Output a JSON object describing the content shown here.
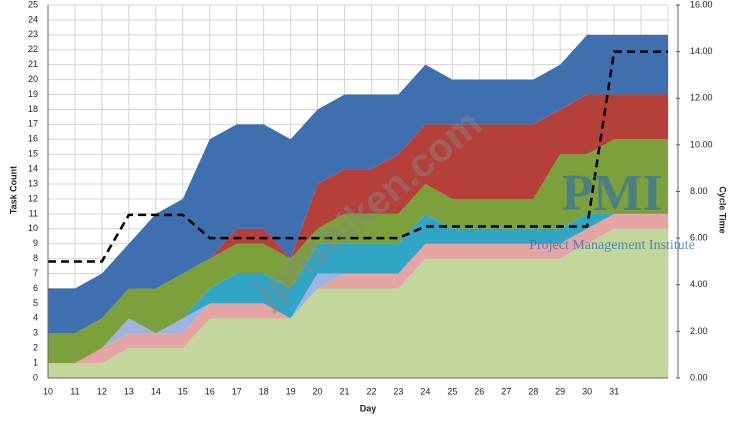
{
  "chart_data": {
    "type": "stacked-area",
    "y_label": "Task Count",
    "x_label": "Day",
    "y2_label": "Cycle Time",
    "categories": [
      "10",
      "11",
      "12",
      "13",
      "14",
      "15",
      "16",
      "17",
      "18",
      "19",
      "20",
      "21",
      "22",
      "23",
      "24",
      "25",
      "26",
      "27",
      "28",
      "29",
      "30",
      "31",
      null,
      null
    ],
    "ylim": [
      0,
      25
    ],
    "yticks": [
      0,
      1,
      2,
      3,
      4,
      5,
      6,
      7,
      8,
      9,
      10,
      11,
      12,
      13,
      14,
      15,
      16,
      17,
      18,
      19,
      20,
      21,
      22,
      23,
      24,
      25
    ],
    "y2lim": [
      0,
      16
    ],
    "y2ticks": [
      {
        "value": 0,
        "label": "0.00"
      },
      {
        "value": 2,
        "label": "2.00"
      },
      {
        "value": 4,
        "label": "4.00"
      },
      {
        "value": 6,
        "label": "6.00"
      },
      {
        "value": 8,
        "label": "8.00"
      },
      {
        "value": 10,
        "label": "10.00"
      },
      {
        "value": 12,
        "label": "12.00"
      },
      {
        "value": 14,
        "label": "14.00"
      },
      {
        "value": 16,
        "label": "16.00"
      }
    ],
    "grid": true,
    "series": [
      {
        "color": "#c3d69b",
        "values": [
          1,
          1,
          1,
          2,
          2,
          2,
          4,
          4,
          4,
          4,
          6,
          6,
          6,
          6,
          8,
          8,
          8,
          8,
          8,
          8,
          9,
          10,
          10,
          10
        ]
      },
      {
        "color": "#e6a5a5",
        "values": [
          0,
          0,
          1,
          1,
          1,
          1,
          1,
          1,
          1,
          0,
          0,
          1,
          1,
          1,
          1,
          1,
          1,
          1,
          1,
          1,
          1,
          1,
          1,
          1
        ]
      },
      {
        "color": "#9fb4e0",
        "values": [
          0,
          0,
          0,
          1,
          0,
          1,
          0,
          0,
          0,
          0,
          1,
          0,
          0,
          0,
          0,
          0,
          0,
          0,
          0,
          0,
          0,
          0,
          0,
          0
        ]
      },
      {
        "color": "#31a5c4",
        "values": [
          0,
          0,
          0,
          0,
          0,
          0,
          1,
          2,
          2,
          2,
          2,
          2,
          2,
          2,
          2,
          1,
          1,
          1,
          1,
          1,
          1,
          0,
          0,
          0
        ]
      },
      {
        "color": "#7ba03c",
        "values": [
          2,
          2,
          2,
          2,
          3,
          3,
          2,
          2,
          2,
          2,
          1,
          2,
          2,
          2,
          2,
          2,
          2,
          2,
          2,
          5,
          4,
          5,
          5,
          5
        ]
      },
      {
        "color": "#b5403a",
        "values": [
          0,
          0,
          0,
          0,
          0,
          0,
          0,
          1,
          1,
          0,
          3,
          3,
          3,
          4,
          4,
          5,
          5,
          5,
          5,
          3,
          4,
          3,
          3,
          3
        ]
      },
      {
        "color": "#3f6faf",
        "values": [
          3,
          3,
          3,
          3,
          5,
          5,
          8,
          7,
          7,
          8,
          5,
          5,
          5,
          4,
          4,
          3,
          3,
          3,
          3,
          3,
          4,
          4,
          4,
          4
        ]
      },
      {
        "type": "line",
        "axis": "y2",
        "color": "#000000",
        "dashed": true,
        "values": [
          5,
          5,
          5,
          7,
          7,
          7,
          6,
          6,
          6,
          6,
          6,
          6,
          6,
          6,
          6.5,
          6.5,
          6.5,
          6.5,
          6.5,
          6.5,
          6.5,
          14,
          14,
          14
        ]
      }
    ],
    "annotations": [
      "jpnshiken.com",
      "PMI",
      "Project Management Institute"
    ]
  }
}
